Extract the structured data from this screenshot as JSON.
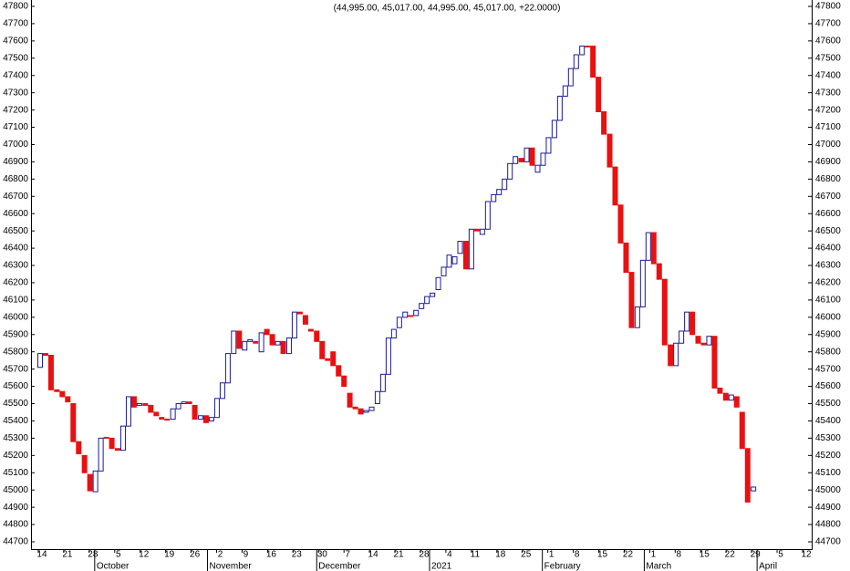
{
  "chart_data": {
    "type": "candlestick",
    "title": "(44,995.00, 45,017.00, 44,995.00, 45,017.00, +22.0000)",
    "up_color": "#1a1a9c",
    "down_color": "#e81010",
    "xlim": [
      -3,
      211.5
    ],
    "ylim": [
      44700,
      47800
    ],
    "yticks": [
      44700,
      44800,
      44900,
      45000,
      45100,
      45200,
      45300,
      45400,
      45500,
      45600,
      45700,
      45800,
      45900,
      46000,
      46100,
      46200,
      46300,
      46400,
      46500,
      46600,
      46700,
      46800,
      46900,
      47000,
      47100,
      47200,
      47300,
      47400,
      47500,
      47600,
      47700,
      47800
    ],
    "xticks": [
      {
        "value": 0,
        "label": "14"
      },
      {
        "value": 7,
        "label": "21"
      },
      {
        "value": 14,
        "label": "28"
      },
      {
        "value": 21,
        "label": "5"
      },
      {
        "value": 28,
        "label": "12"
      },
      {
        "value": 35,
        "label": "19"
      },
      {
        "value": 42,
        "label": "26"
      },
      {
        "value": 49,
        "label": "2"
      },
      {
        "value": 56,
        "label": "9"
      },
      {
        "value": 63,
        "label": "16"
      },
      {
        "value": 70,
        "label": "23"
      },
      {
        "value": 77,
        "label": "30"
      },
      {
        "value": 84,
        "label": "7"
      },
      {
        "value": 91,
        "label": "14"
      },
      {
        "value": 98,
        "label": "21"
      },
      {
        "value": 105,
        "label": "28"
      },
      {
        "value": 112,
        "label": "4"
      },
      {
        "value": 119,
        "label": "11"
      },
      {
        "value": 126,
        "label": "18"
      },
      {
        "value": 133,
        "label": "25"
      },
      {
        "value": 140,
        "label": "1"
      },
      {
        "value": 147,
        "label": "8"
      },
      {
        "value": 154,
        "label": "15"
      },
      {
        "value": 161,
        "label": "22"
      },
      {
        "value": 168,
        "label": "1"
      },
      {
        "value": 175,
        "label": "8"
      },
      {
        "value": 182,
        "label": "15"
      },
      {
        "value": 189,
        "label": "22"
      },
      {
        "value": 196,
        "label": "29"
      },
      {
        "value": 203,
        "label": "5"
      },
      {
        "value": 210,
        "label": "12"
      }
    ],
    "months": [
      {
        "value": 16,
        "label": "October"
      },
      {
        "value": 47,
        "label": "November"
      },
      {
        "value": 77,
        "label": "December"
      },
      {
        "value": 108,
        "label": "2021"
      },
      {
        "value": 139,
        "label": "February"
      },
      {
        "value": 167,
        "label": "March"
      },
      {
        "value": 198,
        "label": "April"
      }
    ],
    "x": [
      -0.5,
      1.0,
      2.5,
      4.1,
      5.6,
      7.1,
      8.6,
      10.1,
      11.7,
      13.2,
      14.7,
      16.2,
      17.7,
      19.2,
      20.8,
      22.3,
      23.8,
      25.3,
      26.8,
      28.4,
      29.9,
      31.4,
      32.9,
      34.4,
      36.0,
      37.5,
      39.0,
      40.5,
      42.0,
      43.6,
      45.1,
      46.6,
      48.1,
      49.6,
      51.1,
      52.7,
      54.2,
      55.7,
      57.2,
      58.7,
      60.3,
      61.8,
      63.3,
      64.8,
      66.3,
      67.9,
      69.4,
      70.9,
      72.4,
      73.9,
      75.5,
      77.0,
      78.5,
      80.0,
      81.5,
      83.0,
      84.6,
      86.1,
      87.6,
      89.1,
      90.6,
      92.2,
      93.7,
      95.2,
      96.7,
      98.2,
      99.8,
      101.3,
      102.8,
      104.3,
      105.8,
      107.3,
      108.9,
      110.4,
      111.9,
      113.4,
      114.9,
      116.5,
      118.0,
      119.5,
      121.0,
      122.5,
      124.1,
      125.6,
      127.1,
      128.6,
      130.1,
      131.7,
      133.2,
      134.7,
      136.2,
      137.7,
      139.2,
      140.8,
      142.3,
      143.8,
      145.3,
      146.8,
      148.4,
      149.9,
      151.4,
      152.9,
      154.4,
      156.0,
      157.5,
      159.0,
      160.5,
      162.0,
      163.6,
      165.1,
      166.6,
      168.1,
      169.6,
      171.1,
      172.7,
      174.2,
      175.7,
      177.2,
      178.7,
      180.3,
      181.8,
      183.3,
      184.8,
      186.3,
      187.9,
      189.4,
      190.9,
      192.4,
      193.9,
      195.5
    ],
    "open": [
      45710,
      45790,
      45780,
      45580,
      45570,
      45540,
      45500,
      45280,
      45200,
      45090,
      44990,
      45110,
      45305,
      45300,
      45240,
      45230,
      45370,
      45540,
      45490,
      45500,
      45490,
      45450,
      45420,
      45410,
      45410,
      45470,
      45500,
      45510,
      45490,
      45410,
      45430,
      45400,
      45420,
      45530,
      45620,
      45790,
      45920,
      45810,
      45860,
      45860,
      45800,
      45930,
      45900,
      45840,
      45860,
      45790,
      45880,
      46030,
      46010,
      45930,
      45920,
      45860,
      45760,
      45800,
      45720,
      45660,
      45560,
      45480,
      45470,
      45450,
      45460,
      45500,
      45570,
      45670,
      45880,
      45940,
      46000,
      46010,
      46010,
      46050,
      46080,
      46120,
      46160,
      46240,
      46290,
      46310,
      46370,
      46440,
      46280,
      46510,
      46480,
      46510,
      46670,
      46710,
      46740,
      46800,
      46890,
      46920,
      46900,
      46980,
      46840,
      46880,
      46950,
      47040,
      47140,
      47280,
      47340,
      47440,
      47520,
      47570,
      47570,
      47390,
      47190,
      47060,
      46870,
      46650,
      46430,
      46260,
      45940,
      46060,
      46330,
      46490,
      46310,
      46220,
      45840,
      45720,
      45850,
      45920,
      46030,
      45890,
      45850,
      45840,
      45890,
      45590,
      45560,
      45520,
      45540,
      45450,
      45240,
      44995
    ],
    "close": [
      45790,
      45780,
      45580,
      45570,
      45540,
      45510,
      45280,
      45210,
      45100,
      44995,
      45110,
      45300,
      45300,
      45240,
      45230,
      45370,
      45540,
      45480,
      45500,
      45490,
      45450,
      45430,
      45410,
      45405,
      45470,
      45500,
      45510,
      45500,
      45410,
      45430,
      45390,
      45420,
      45530,
      45620,
      45790,
      45920,
      45820,
      45860,
      45870,
      45850,
      45910,
      45900,
      45840,
      45860,
      45790,
      45880,
      46030,
      46020,
      45960,
      45920,
      45860,
      45760,
      45750,
      45720,
      45660,
      45600,
      45480,
      45470,
      45440,
      45460,
      45480,
      45570,
      45670,
      45880,
      45930,
      46000,
      46030,
      46005,
      46040,
      46080,
      46120,
      46140,
      46230,
      46290,
      46360,
      46350,
      46440,
      46280,
      46510,
      46500,
      46510,
      46670,
      46710,
      46740,
      46800,
      46890,
      46930,
      46900,
      46980,
      46880,
      46880,
      46950,
      47040,
      47140,
      47280,
      47340,
      47440,
      47520,
      47570,
      47565,
      47390,
      47190,
      47060,
      46870,
      46650,
      46430,
      46260,
      45940,
      46060,
      46330,
      46490,
      46310,
      46220,
      45840,
      45720,
      45850,
      45920,
      46030,
      45900,
      45850,
      45840,
      45890,
      45590,
      45560,
      45520,
      45550,
      45480,
      45240,
      44930,
      45017
    ]
  }
}
